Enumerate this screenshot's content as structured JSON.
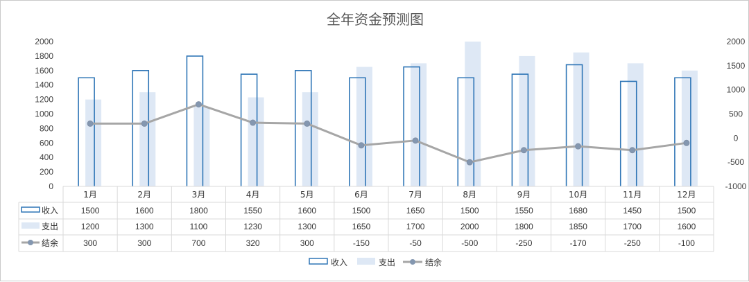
{
  "chart_data": {
    "type": "bar",
    "title": "全年资金预测图",
    "categories": [
      "1月",
      "2月",
      "3月",
      "4月",
      "5月",
      "6月",
      "7月",
      "8月",
      "9月",
      "10月",
      "11月",
      "12月"
    ],
    "series": [
      {
        "name": "收入",
        "type": "bar",
        "axis": "left",
        "values": [
          1500,
          1600,
          1800,
          1550,
          1600,
          1500,
          1650,
          1500,
          1550,
          1680,
          1450,
          1500
        ],
        "color": "#2E75B6"
      },
      {
        "name": "支出",
        "type": "bar",
        "axis": "left",
        "values": [
          1200,
          1300,
          1100,
          1230,
          1300,
          1650,
          1700,
          2000,
          1800,
          1850,
          1700,
          1600
        ],
        "color": "#DEE8F5"
      },
      {
        "name": "结余",
        "type": "line",
        "axis": "right",
        "values": [
          300,
          300,
          700,
          320,
          300,
          -150,
          -50,
          -500,
          -250,
          -170,
          -250,
          -100
        ],
        "color": "#A6A6A6",
        "marker_color": "#8497B0"
      }
    ],
    "left_axis": {
      "min": 0,
      "max": 2000,
      "step": 200
    },
    "right_axis": {
      "min": -1000,
      "max": 2000,
      "step": 500
    },
    "legend": "bottom",
    "grid": false,
    "data_table": true
  }
}
